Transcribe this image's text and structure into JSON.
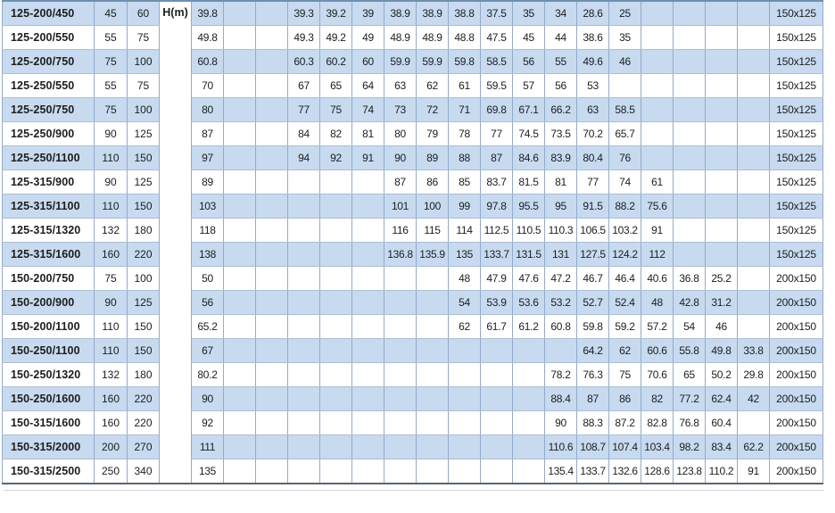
{
  "table": {
    "h_column_label": "H(m)",
    "rows": [
      {
        "model": "125-200/450",
        "kw": "45",
        "hp": "60",
        "values": [
          "39.8",
          "",
          "",
          "39.3",
          "39.2",
          "39",
          "38.9",
          "38.9",
          "38.8",
          "37.5",
          "35",
          "34",
          "28.6",
          "25",
          "",
          "",
          "",
          ""
        ],
        "size": "150x125"
      },
      {
        "model": "125-200/550",
        "kw": "55",
        "hp": "75",
        "values": [
          "49.8",
          "",
          "",
          "49.3",
          "49.2",
          "49",
          "48.9",
          "48.9",
          "48.8",
          "47.5",
          "45",
          "44",
          "38.6",
          "35",
          "",
          "",
          "",
          ""
        ],
        "size": "150x125"
      },
      {
        "model": "125-200/750",
        "kw": "75",
        "hp": "100",
        "values": [
          "60.8",
          "",
          "",
          "60.3",
          "60.2",
          "60",
          "59.9",
          "59.9",
          "59.8",
          "58.5",
          "56",
          "55",
          "49.6",
          "46",
          "",
          "",
          "",
          ""
        ],
        "size": "150x125"
      },
      {
        "model": "125-250/550",
        "kw": "55",
        "hp": "75",
        "values": [
          "70",
          "",
          "",
          "67",
          "65",
          "64",
          "63",
          "62",
          "61",
          "59.5",
          "57",
          "56",
          "53",
          "",
          "",
          "",
          "",
          ""
        ],
        "size": "150x125"
      },
      {
        "model": "125-250/750",
        "kw": "75",
        "hp": "100",
        "values": [
          "80",
          "",
          "",
          "77",
          "75",
          "74",
          "73",
          "72",
          "71",
          "69.8",
          "67.1",
          "66.2",
          "63",
          "58.5",
          "",
          "",
          "",
          ""
        ],
        "size": "150x125"
      },
      {
        "model": "125-250/900",
        "kw": "90",
        "hp": "125",
        "values": [
          "87",
          "",
          "",
          "84",
          "82",
          "81",
          "80",
          "79",
          "78",
          "77",
          "74.5",
          "73.5",
          "70.2",
          "65.7",
          "",
          "",
          "",
          ""
        ],
        "size": "150x125"
      },
      {
        "model": "125-250/1100",
        "kw": "110",
        "hp": "150",
        "values": [
          "97",
          "",
          "",
          "94",
          "92",
          "91",
          "90",
          "89",
          "88",
          "87",
          "84.6",
          "83.9",
          "80.4",
          "76",
          "",
          "",
          "",
          ""
        ],
        "size": "150x125"
      },
      {
        "model": "125-315/900",
        "kw": "90",
        "hp": "125",
        "values": [
          "89",
          "",
          "",
          "",
          "",
          "",
          "87",
          "86",
          "85",
          "83.7",
          "81.5",
          "81",
          "77",
          "74",
          "61",
          "",
          "",
          ""
        ],
        "size": "150x125"
      },
      {
        "model": "125-315/1100",
        "kw": "110",
        "hp": "150",
        "values": [
          "103",
          "",
          "",
          "",
          "",
          "",
          "101",
          "100",
          "99",
          "97.8",
          "95.5",
          "95",
          "91.5",
          "88.2",
          "75.6",
          "",
          "",
          ""
        ],
        "size": "150x125"
      },
      {
        "model": "125-315/1320",
        "kw": "132",
        "hp": "180",
        "values": [
          "118",
          "",
          "",
          "",
          "",
          "",
          "116",
          "115",
          "114",
          "112.5",
          "110.5",
          "110.3",
          "106.5",
          "103.2",
          "91",
          "",
          "",
          ""
        ],
        "size": "150x125"
      },
      {
        "model": "125-315/1600",
        "kw": "160",
        "hp": "220",
        "values": [
          "138",
          "",
          "",
          "",
          "",
          "",
          "136.8",
          "135.9",
          "135",
          "133.7",
          "131.5",
          "131",
          "127.5",
          "124.2",
          "112",
          "",
          "",
          ""
        ],
        "size": "150x125"
      },
      {
        "model": "150-200/750",
        "kw": "75",
        "hp": "100",
        "values": [
          "50",
          "",
          "",
          "",
          "",
          "",
          "",
          "",
          "48",
          "47.9",
          "47.6",
          "47.2",
          "46.7",
          "46.4",
          "40.6",
          "36.8",
          "25.2",
          ""
        ],
        "size": "200x150"
      },
      {
        "model": "150-200/900",
        "kw": "90",
        "hp": "125",
        "values": [
          "56",
          "",
          "",
          "",
          "",
          "",
          "",
          "",
          "54",
          "53.9",
          "53.6",
          "53.2",
          "52.7",
          "52.4",
          "48",
          "42.8",
          "31.2",
          ""
        ],
        "size": "200x150"
      },
      {
        "model": "150-200/1100",
        "kw": "110",
        "hp": "150",
        "values": [
          "65.2",
          "",
          "",
          "",
          "",
          "",
          "",
          "",
          "62",
          "61.7",
          "61.2",
          "60.8",
          "59.8",
          "59.2",
          "57.2",
          "54",
          "46",
          ""
        ],
        "size": "200x150"
      },
      {
        "model": "150-250/1100",
        "kw": "110",
        "hp": "150",
        "values": [
          "67",
          "",
          "",
          "",
          "",
          "",
          "",
          "",
          "",
          "",
          "",
          "",
          "64.2",
          "62",
          "60.6",
          "55.8",
          "49.8",
          "33.8"
        ],
        "size": "200x150"
      },
      {
        "model": "150-250/1320",
        "kw": "132",
        "hp": "180",
        "values": [
          "80.2",
          "",
          "",
          "",
          "",
          "",
          "",
          "",
          "",
          "",
          "",
          "78.2",
          "76.3",
          "75",
          "70.6",
          "65",
          "50.2",
          "29.8"
        ],
        "size": "200x150"
      },
      {
        "model": "150-250/1600",
        "kw": "160",
        "hp": "220",
        "values": [
          "90",
          "",
          "",
          "",
          "",
          "",
          "",
          "",
          "",
          "",
          "",
          "88.4",
          "87",
          "86",
          "82",
          "77.2",
          "62.4",
          "42"
        ],
        "size": "200x150"
      },
      {
        "model": "150-315/1600",
        "kw": "160",
        "hp": "220",
        "values": [
          "92",
          "",
          "",
          "",
          "",
          "",
          "",
          "",
          "",
          "",
          "",
          "90",
          "88.3",
          "87.2",
          "82.8",
          "76.8",
          "60.4",
          ""
        ],
        "size": "200x150"
      },
      {
        "model": "150-315/2000",
        "kw": "200",
        "hp": "270",
        "values": [
          "111",
          "",
          "",
          "",
          "",
          "",
          "",
          "",
          "",
          "",
          "",
          "110.6",
          "108.7",
          "107.4",
          "103.4",
          "98.2",
          "83.4",
          "62.2"
        ],
        "size": "200x150"
      },
      {
        "model": "150-315/2500",
        "kw": "250",
        "hp": "340",
        "values": [
          "135",
          "",
          "",
          "",
          "",
          "",
          "",
          "",
          "",
          "",
          "",
          "135.4",
          "133.7",
          "132.6",
          "128.6",
          "123.8",
          "110.2",
          "91"
        ],
        "size": "200x150"
      }
    ]
  },
  "colors": {
    "row_blue": "#c7daef",
    "row_white": "#ffffff",
    "vertical_border": "#93aac9",
    "horizontal_border": "#aebdd2",
    "text": "#1d1d1d"
  }
}
